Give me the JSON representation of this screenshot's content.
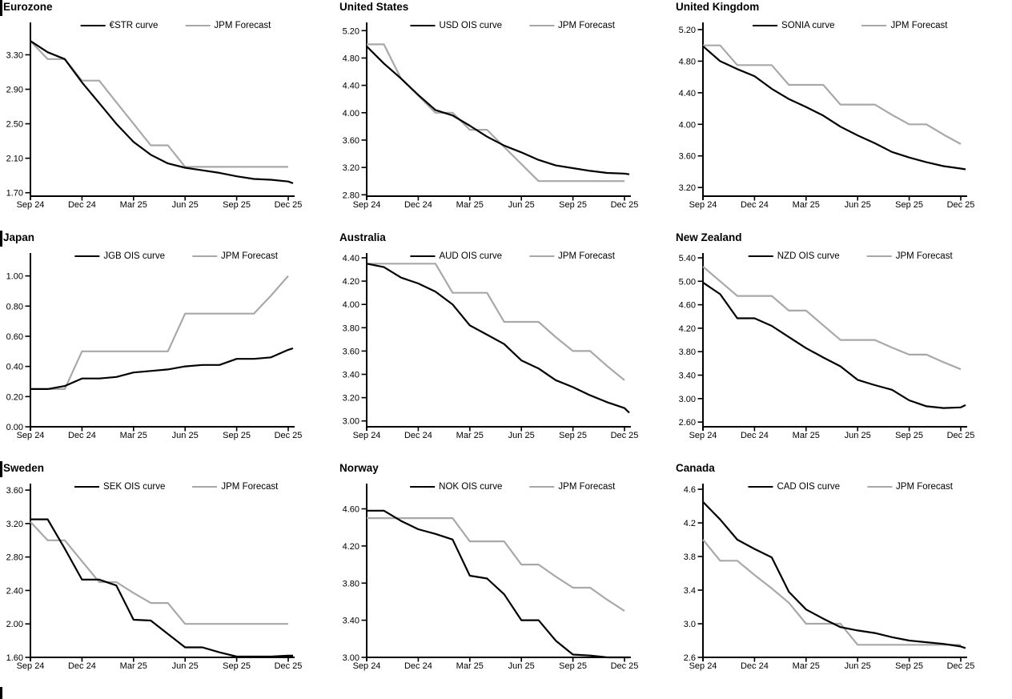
{
  "page": {
    "background": "#ffffff",
    "curve_color": "#000000",
    "forecast_color": "#a8a8a8"
  },
  "x_axis": {
    "tick_labels": [
      "Sep 24",
      "Dec 24",
      "Mar 25",
      "Jun 25",
      "Sep 25",
      "Dec 25"
    ],
    "tick_months": [
      0,
      3,
      6,
      9,
      12,
      15
    ],
    "points": [
      "Sep 24",
      "Oct 24",
      "Nov 24",
      "Dec 24",
      "Jan 25",
      "Feb 25",
      "Mar 25",
      "Apr 25",
      "May 25",
      "Jun 25",
      "Jul 25",
      "Aug 25",
      "Sep 25",
      "Oct 25",
      "Nov 25",
      "Dec 25"
    ]
  },
  "chart_data": [
    {
      "type": "line",
      "title": "Eurozone",
      "section_bar": true,
      "ylim": [
        1.66,
        3.62
      ],
      "yticks": [
        "1.70",
        "2.10",
        "2.50",
        "2.90",
        "3.30"
      ],
      "legend_position": "top-center",
      "grid": false,
      "series": [
        {
          "name": "€STR curve",
          "color": "#000000",
          "values": [
            3.46,
            3.33,
            3.25,
            2.98,
            2.74,
            2.5,
            2.29,
            2.14,
            2.04,
            1.99,
            1.96,
            1.93,
            1.89,
            1.86,
            1.85,
            1.83
          ],
          "tail": 1.81
        },
        {
          "name": "JPM Forecast",
          "color": "#a8a8a8",
          "values": [
            3.46,
            3.25,
            3.25,
            3.0,
            3.0,
            2.75,
            2.5,
            2.25,
            2.25,
            2.0,
            2.0,
            2.0,
            2.0,
            2.0,
            2.0,
            2.0
          ]
        }
      ]
    },
    {
      "type": "line",
      "title": "United States",
      "section_bar": false,
      "ylim": [
        2.78,
        5.25
      ],
      "yticks": [
        "2.80",
        "3.20",
        "3.60",
        "4.00",
        "4.40",
        "4.80",
        "5.20"
      ],
      "legend_position": "top-center",
      "grid": false,
      "series": [
        {
          "name": "USD OIS curve",
          "color": "#000000",
          "values": [
            4.97,
            4.72,
            4.5,
            4.26,
            4.04,
            3.96,
            3.81,
            3.65,
            3.52,
            3.42,
            3.31,
            3.23,
            3.19,
            3.15,
            3.12,
            3.11
          ],
          "tail": 3.1
        },
        {
          "name": "JPM Forecast",
          "color": "#a8a8a8",
          "values": [
            5.0,
            5.0,
            4.5,
            4.25,
            4.0,
            4.0,
            3.75,
            3.75,
            3.5,
            3.25,
            3.0,
            3.0,
            3.0,
            3.0,
            3.0,
            3.0
          ]
        }
      ]
    },
    {
      "type": "line",
      "title": "United Kingdom",
      "section_bar": false,
      "ylim": [
        3.09,
        5.23
      ],
      "yticks": [
        "3.20",
        "3.60",
        "4.00",
        "4.40",
        "4.80",
        "5.20"
      ],
      "legend_position": "top-center",
      "grid": false,
      "series": [
        {
          "name": "SONIA curve",
          "color": "#000000",
          "values": [
            4.99,
            4.8,
            4.7,
            4.61,
            4.45,
            4.32,
            4.22,
            4.11,
            3.97,
            3.86,
            3.76,
            3.65,
            3.58,
            3.52,
            3.47,
            3.44
          ],
          "tail": 3.43
        },
        {
          "name": "JPM Forecast",
          "color": "#a8a8a8",
          "values": [
            5.0,
            5.0,
            4.75,
            4.75,
            4.75,
            4.5,
            4.5,
            4.5,
            4.25,
            4.25,
            4.25,
            4.12,
            4.0,
            4.0,
            3.87,
            3.75
          ]
        }
      ]
    },
    {
      "type": "line",
      "title": "Japan",
      "section_bar": true,
      "ylim": [
        0.0,
        1.12
      ],
      "yticks": [
        "0.00",
        "0.20",
        "0.40",
        "0.60",
        "0.80",
        "1.00"
      ],
      "legend_position": "top-center",
      "grid": false,
      "series": [
        {
          "name": "JGB OIS curve",
          "color": "#000000",
          "values": [
            0.25,
            0.25,
            0.27,
            0.32,
            0.32,
            0.33,
            0.36,
            0.37,
            0.38,
            0.4,
            0.41,
            0.41,
            0.45,
            0.45,
            0.46,
            0.51
          ],
          "tail": 0.52
        },
        {
          "name": "JPM Forecast",
          "color": "#a8a8a8",
          "values": [
            0.25,
            0.25,
            0.25,
            0.5,
            0.5,
            0.5,
            0.5,
            0.5,
            0.5,
            0.75,
            0.75,
            0.75,
            0.75,
            0.75,
            0.87,
            1.0
          ]
        }
      ]
    },
    {
      "type": "line",
      "title": "Australia",
      "section_bar": false,
      "ylim": [
        2.95,
        4.4
      ],
      "yticks": [
        "3.00",
        "3.20",
        "3.40",
        "3.60",
        "3.80",
        "4.00",
        "4.20",
        "4.40"
      ],
      "legend_position": "top-center",
      "grid": false,
      "series": [
        {
          "name": "AUD OIS curve",
          "color": "#000000",
          "values": [
            4.35,
            4.32,
            4.23,
            4.18,
            4.11,
            4.0,
            3.82,
            3.74,
            3.66,
            3.52,
            3.45,
            3.35,
            3.29,
            3.22,
            3.16,
            3.11
          ],
          "tail": 3.07
        },
        {
          "name": "JPM Forecast",
          "color": "#a8a8a8",
          "values": [
            4.35,
            4.35,
            4.35,
            4.35,
            4.35,
            4.1,
            4.1,
            4.1,
            3.85,
            3.85,
            3.85,
            3.72,
            3.6,
            3.6,
            3.47,
            3.35
          ]
        }
      ]
    },
    {
      "type": "line",
      "title": "New Zealand",
      "section_bar": false,
      "ylim": [
        2.52,
        5.4
      ],
      "yticks": [
        "2.60",
        "3.00",
        "3.40",
        "3.80",
        "4.20",
        "4.60",
        "5.00",
        "5.40"
      ],
      "legend_position": "top-center",
      "grid": false,
      "series": [
        {
          "name": "NZD OIS curve",
          "color": "#000000",
          "values": [
            4.98,
            4.78,
            4.37,
            4.37,
            4.24,
            4.05,
            3.86,
            3.7,
            3.55,
            3.32,
            3.23,
            3.15,
            2.97,
            2.87,
            2.84,
            2.85
          ],
          "tail": 2.89
        },
        {
          "name": "JPM Forecast",
          "color": "#a8a8a8",
          "values": [
            5.25,
            5.0,
            4.75,
            4.75,
            4.75,
            4.5,
            4.5,
            4.25,
            4.0,
            4.0,
            4.0,
            3.87,
            3.75,
            3.75,
            3.62,
            3.5
          ]
        }
      ]
    },
    {
      "type": "line",
      "title": "Sweden",
      "section_bar": true,
      "ylim": [
        1.6,
        3.62
      ],
      "yticks": [
        "1.60",
        "2.00",
        "2.40",
        "2.80",
        "3.20",
        "3.60"
      ],
      "legend_position": "top-center",
      "grid": false,
      "series": [
        {
          "name": "SEK OIS curve",
          "color": "#000000",
          "values": [
            3.25,
            3.25,
            2.9,
            2.53,
            2.53,
            2.46,
            2.05,
            2.04,
            1.88,
            1.72,
            1.72,
            1.66,
            1.61,
            1.61,
            1.61,
            1.62
          ],
          "tail": 1.62
        },
        {
          "name": "JPM Forecast",
          "color": "#a8a8a8",
          "values": [
            3.22,
            3.0,
            3.0,
            2.75,
            2.5,
            2.5,
            2.37,
            2.25,
            2.25,
            2.0,
            2.0,
            2.0,
            2.0,
            2.0,
            2.0,
            2.0
          ]
        }
      ]
    },
    {
      "type": "line",
      "title": "Norway",
      "section_bar": false,
      "ylim": [
        3.0,
        4.82
      ],
      "yticks": [
        "3.00",
        "3.40",
        "3.80",
        "4.20",
        "4.60"
      ],
      "legend_position": "top-center",
      "grid": false,
      "series": [
        {
          "name": "NOK OIS curve",
          "color": "#000000",
          "values": [
            4.58,
            4.58,
            4.47,
            4.38,
            4.33,
            4.27,
            3.88,
            3.85,
            3.68,
            3.4,
            3.4,
            3.18,
            3.03,
            3.02,
            3.0,
            3.0
          ],
          "tail": 3.0
        },
        {
          "name": "JPM Forecast",
          "color": "#a8a8a8",
          "values": [
            4.5,
            4.5,
            4.5,
            4.5,
            4.5,
            4.5,
            4.25,
            4.25,
            4.25,
            4.0,
            4.0,
            3.87,
            3.75,
            3.75,
            3.62,
            3.5
          ]
        }
      ]
    },
    {
      "type": "line",
      "title": "Canada",
      "section_bar": false,
      "ylim": [
        2.6,
        4.61
      ],
      "yticks": [
        "2.6",
        "3.0",
        "3.4",
        "3.8",
        "4.2",
        "4.6"
      ],
      "legend_position": "top-center",
      "grid": false,
      "series": [
        {
          "name": "CAD OIS curve",
          "color": "#000000",
          "values": [
            4.45,
            4.24,
            4.0,
            3.89,
            3.79,
            3.38,
            3.17,
            3.06,
            2.96,
            2.92,
            2.89,
            2.84,
            2.8,
            2.78,
            2.76,
            2.73
          ],
          "tail": 2.71
        },
        {
          "name": "JPM Forecast",
          "color": "#a8a8a8",
          "values": [
            4.0,
            3.75,
            3.75,
            3.58,
            3.42,
            3.25,
            3.0,
            3.0,
            3.0,
            2.75,
            2.75,
            2.75,
            2.75,
            2.75,
            2.75,
            2.75
          ]
        }
      ]
    }
  ]
}
